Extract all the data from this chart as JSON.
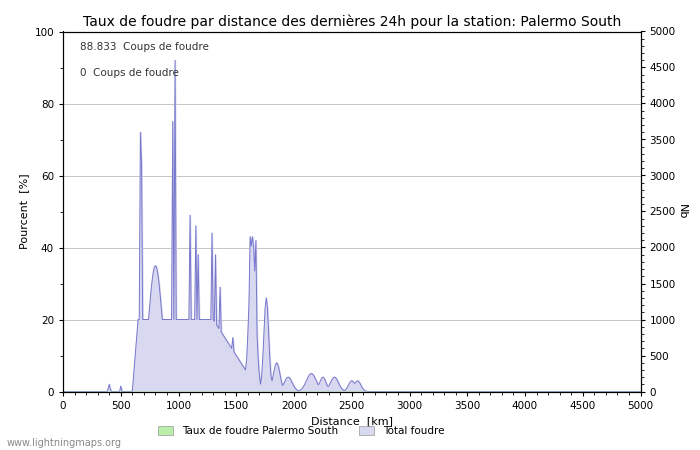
{
  "title": "Taux de foudre par distance des dernières 24h pour la station: Palermo South",
  "xlabel": "Distance  [km]",
  "ylabel_left": "Pourcent  [%]",
  "ylabel_right": "Nb",
  "annotation_line1": "88.833  Coups de foudre",
  "annotation_line2": "0  Coups de foudre",
  "xlim": [
    0,
    5000
  ],
  "ylim_left": [
    0,
    100
  ],
  "ylim_right": [
    0,
    5000
  ],
  "xticks": [
    0,
    500,
    1000,
    1500,
    2000,
    2500,
    3000,
    3500,
    4000,
    4500,
    5000
  ],
  "yticks_left": [
    0,
    20,
    40,
    60,
    80,
    100
  ],
  "yticks_right": [
    0,
    500,
    1000,
    1500,
    2000,
    2500,
    3000,
    3500,
    4000,
    4500,
    5000
  ],
  "legend_label_green": "Taux de foudre Palermo South",
  "legend_label_blue": "Total foudre",
  "line_color": "#7777cc",
  "fill_color_blue": "#d8d8f0",
  "fill_color_green": "#bbeeaa",
  "background_color": "#ffffff",
  "grid_color": "#bbbbbb",
  "watermark": "www.lightningmaps.org",
  "title_fontsize": 10,
  "axis_fontsize": 8,
  "tick_fontsize": 7.5,
  "watermark_fontsize": 7
}
